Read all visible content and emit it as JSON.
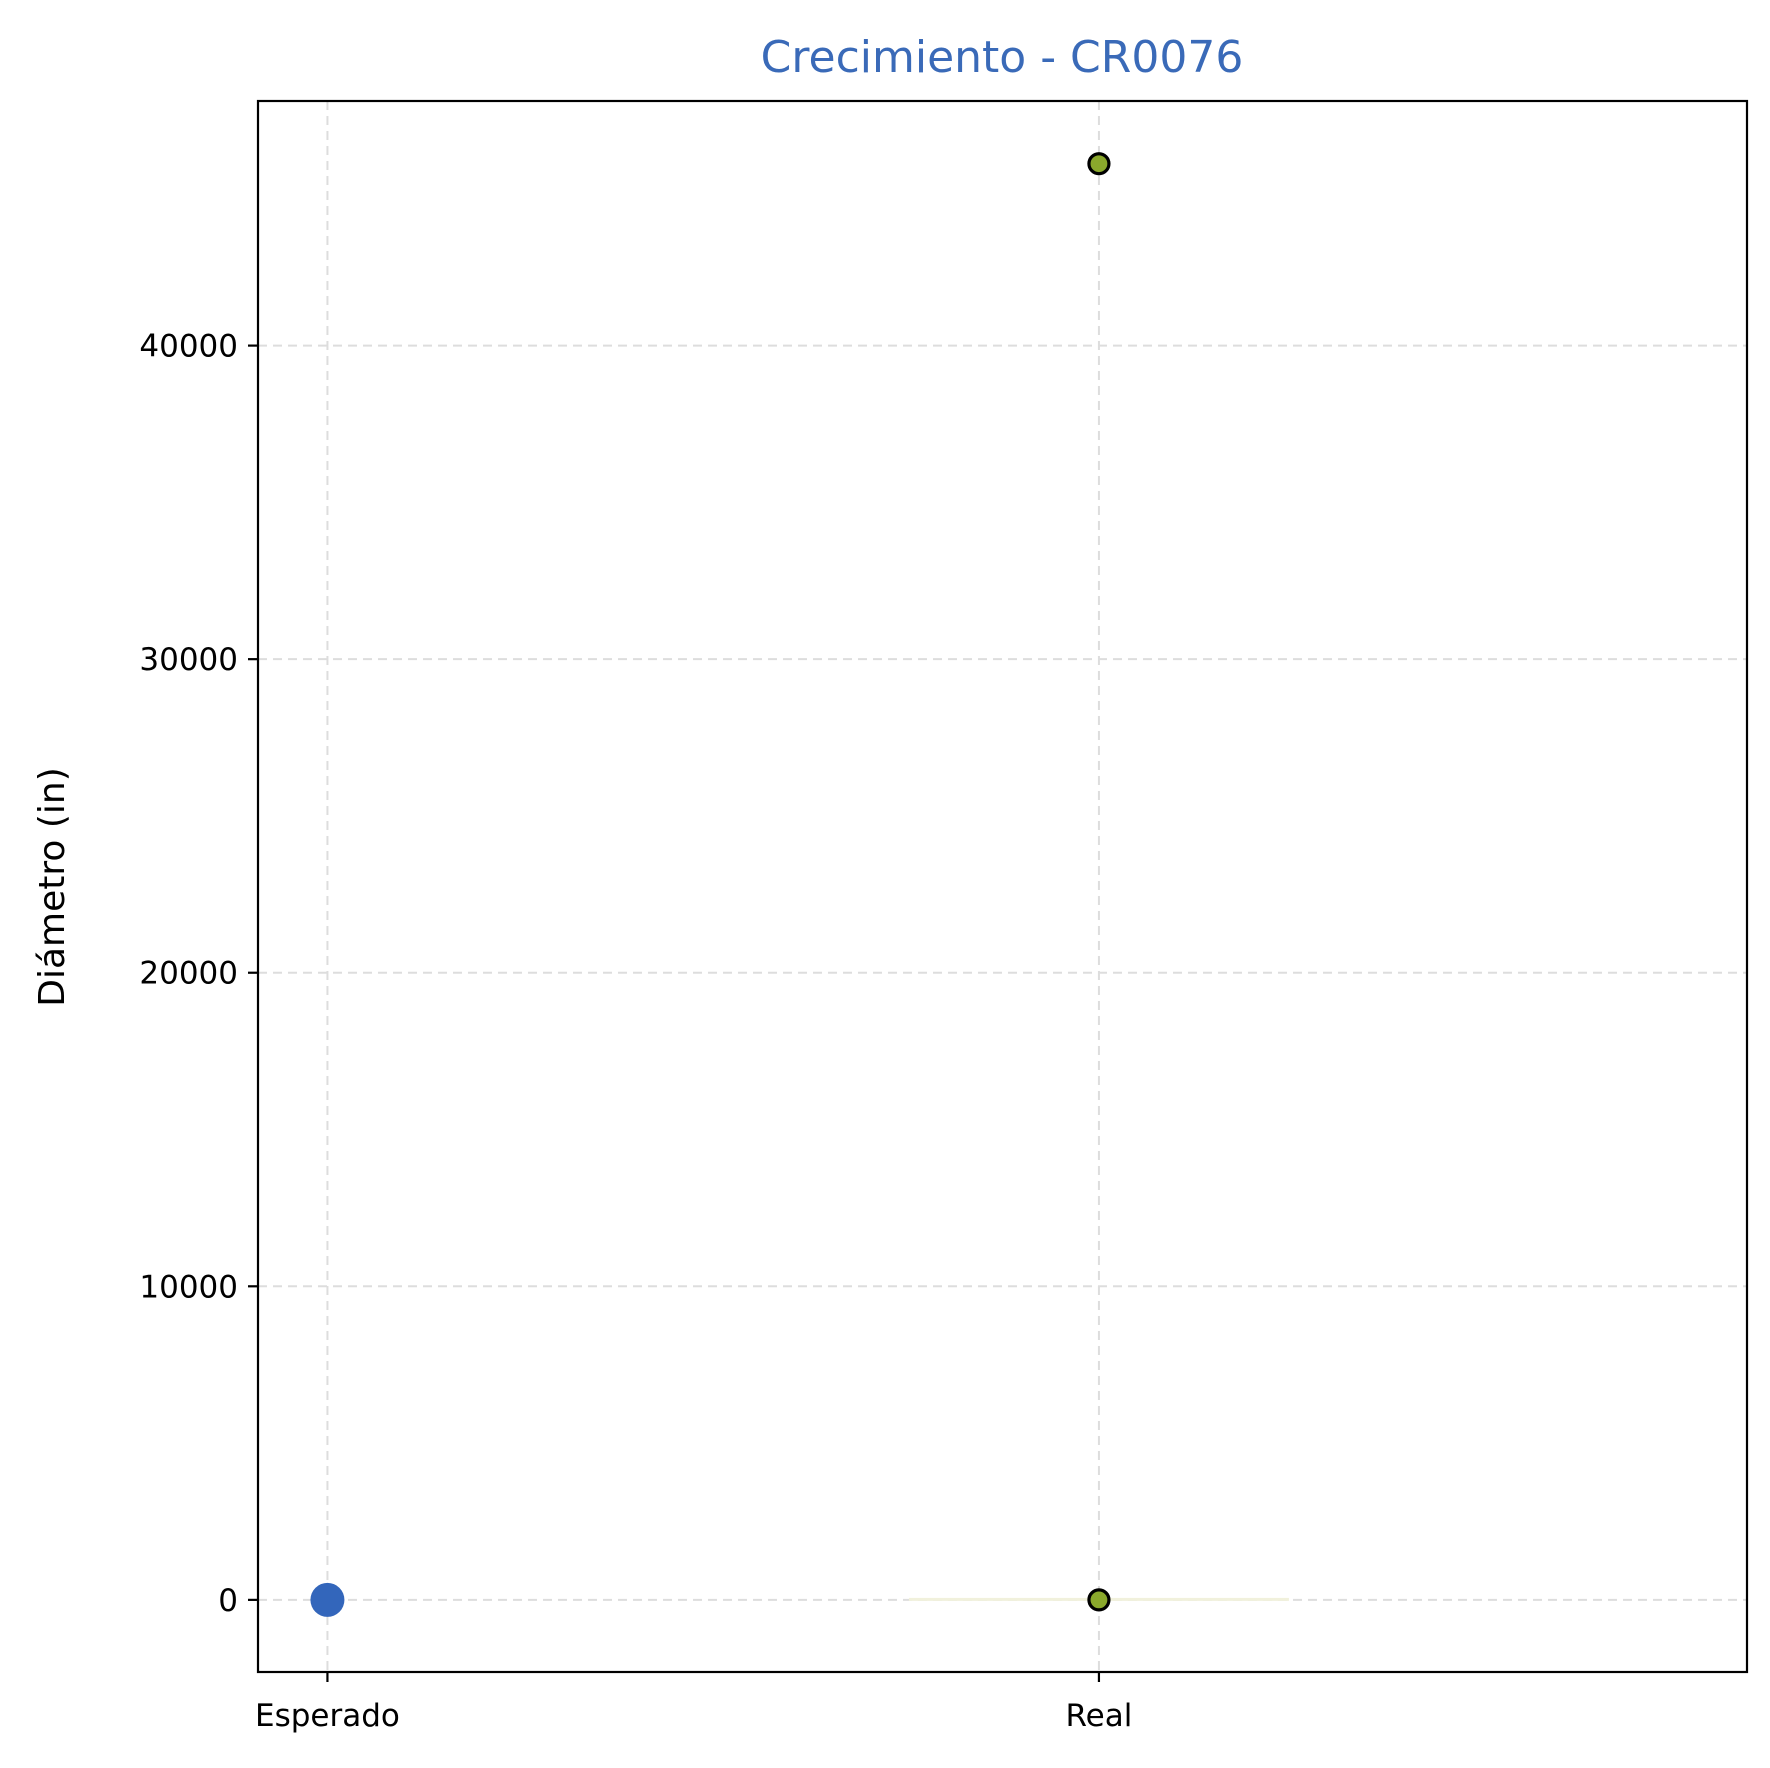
{
  "chart_data": {
    "type": "scatter",
    "title": "Crecimiento - CR0076",
    "xlabel": "",
    "ylabel": "Diámetro (in)",
    "categories": [
      "Esperado",
      "Real"
    ],
    "xlim": [
      -0.09,
      1.84
    ],
    "ylim": [
      -2300,
      47800
    ],
    "yticks": [
      0,
      10000,
      20000,
      30000,
      40000
    ],
    "ytick_labels": [
      "0",
      "10000",
      "20000",
      "30000",
      "40000"
    ],
    "grid": true,
    "legend": "none",
    "series": [
      {
        "category": "Esperado",
        "values": [
          0
        ],
        "color": "#3366bb",
        "marker": "large-filled-circle"
      },
      {
        "category": "Real",
        "values": [
          0,
          45800
        ],
        "color": "#8aa82c",
        "edge_color": "#000000",
        "marker": "small-circle-black-edge"
      }
    ],
    "colors": {
      "title": "#3a6ab8",
      "grid": "#dddddd",
      "axes": "#000000"
    }
  }
}
